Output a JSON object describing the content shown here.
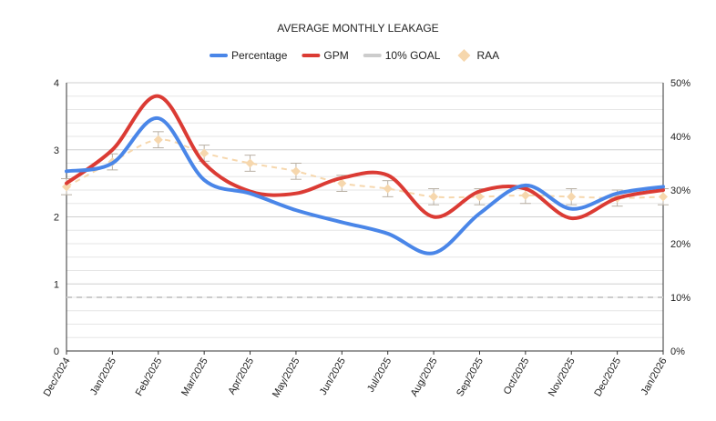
{
  "chart_data": {
    "type": "line",
    "title": "AVERAGE MONTHLY LEAKAGE",
    "categories": [
      "Dec/2024",
      "Jan/2025",
      "Feb/2025",
      "Mar/2025",
      "Apr/2025",
      "May/2025",
      "Jun/2025",
      "Jul/2025",
      "Aug/2025",
      "Sep/2025",
      "Oct/2025",
      "Nov/2025",
      "Dec/2025",
      "Jan/2026"
    ],
    "left_axis": {
      "min": 0,
      "max": 4,
      "ticks": [
        "0",
        "1",
        "2",
        "3",
        "4"
      ]
    },
    "right_axis": {
      "min": 0,
      "max": 50,
      "ticks": [
        "0%",
        "10%",
        "20%",
        "30%",
        "40%",
        "50%"
      ]
    },
    "grid": true,
    "legend_position": "top",
    "series": [
      {
        "name": "Percentage",
        "axis": "left",
        "color": "#4a86e8",
        "style": "solid-smooth",
        "values": [
          2.68,
          2.8,
          3.47,
          2.55,
          2.35,
          2.1,
          1.92,
          1.75,
          1.46,
          2.05,
          2.47,
          2.12,
          2.35,
          2.45
        ]
      },
      {
        "name": "GPM",
        "axis": "left",
        "color": "#db3b34",
        "style": "solid-smooth",
        "values": [
          2.5,
          3.0,
          3.8,
          2.8,
          2.38,
          2.35,
          2.58,
          2.62,
          2.0,
          2.38,
          2.42,
          1.98,
          2.28,
          2.4
        ]
      },
      {
        "name": "10% GOAL",
        "axis": "right",
        "color": "#cccccc",
        "style": "dashed",
        "values": [
          10,
          10,
          10,
          10,
          10,
          10,
          10,
          10,
          10,
          10,
          10,
          10,
          10,
          10
        ]
      },
      {
        "name": "RAA",
        "axis": "left",
        "color": "#f6d7ad",
        "style": "dashed-markers-errorbars",
        "values": [
          2.45,
          2.82,
          3.15,
          2.95,
          2.8,
          2.68,
          2.5,
          2.42,
          2.3,
          2.3,
          2.32,
          2.3,
          2.28,
          2.3
        ],
        "error": 0.12
      }
    ]
  }
}
